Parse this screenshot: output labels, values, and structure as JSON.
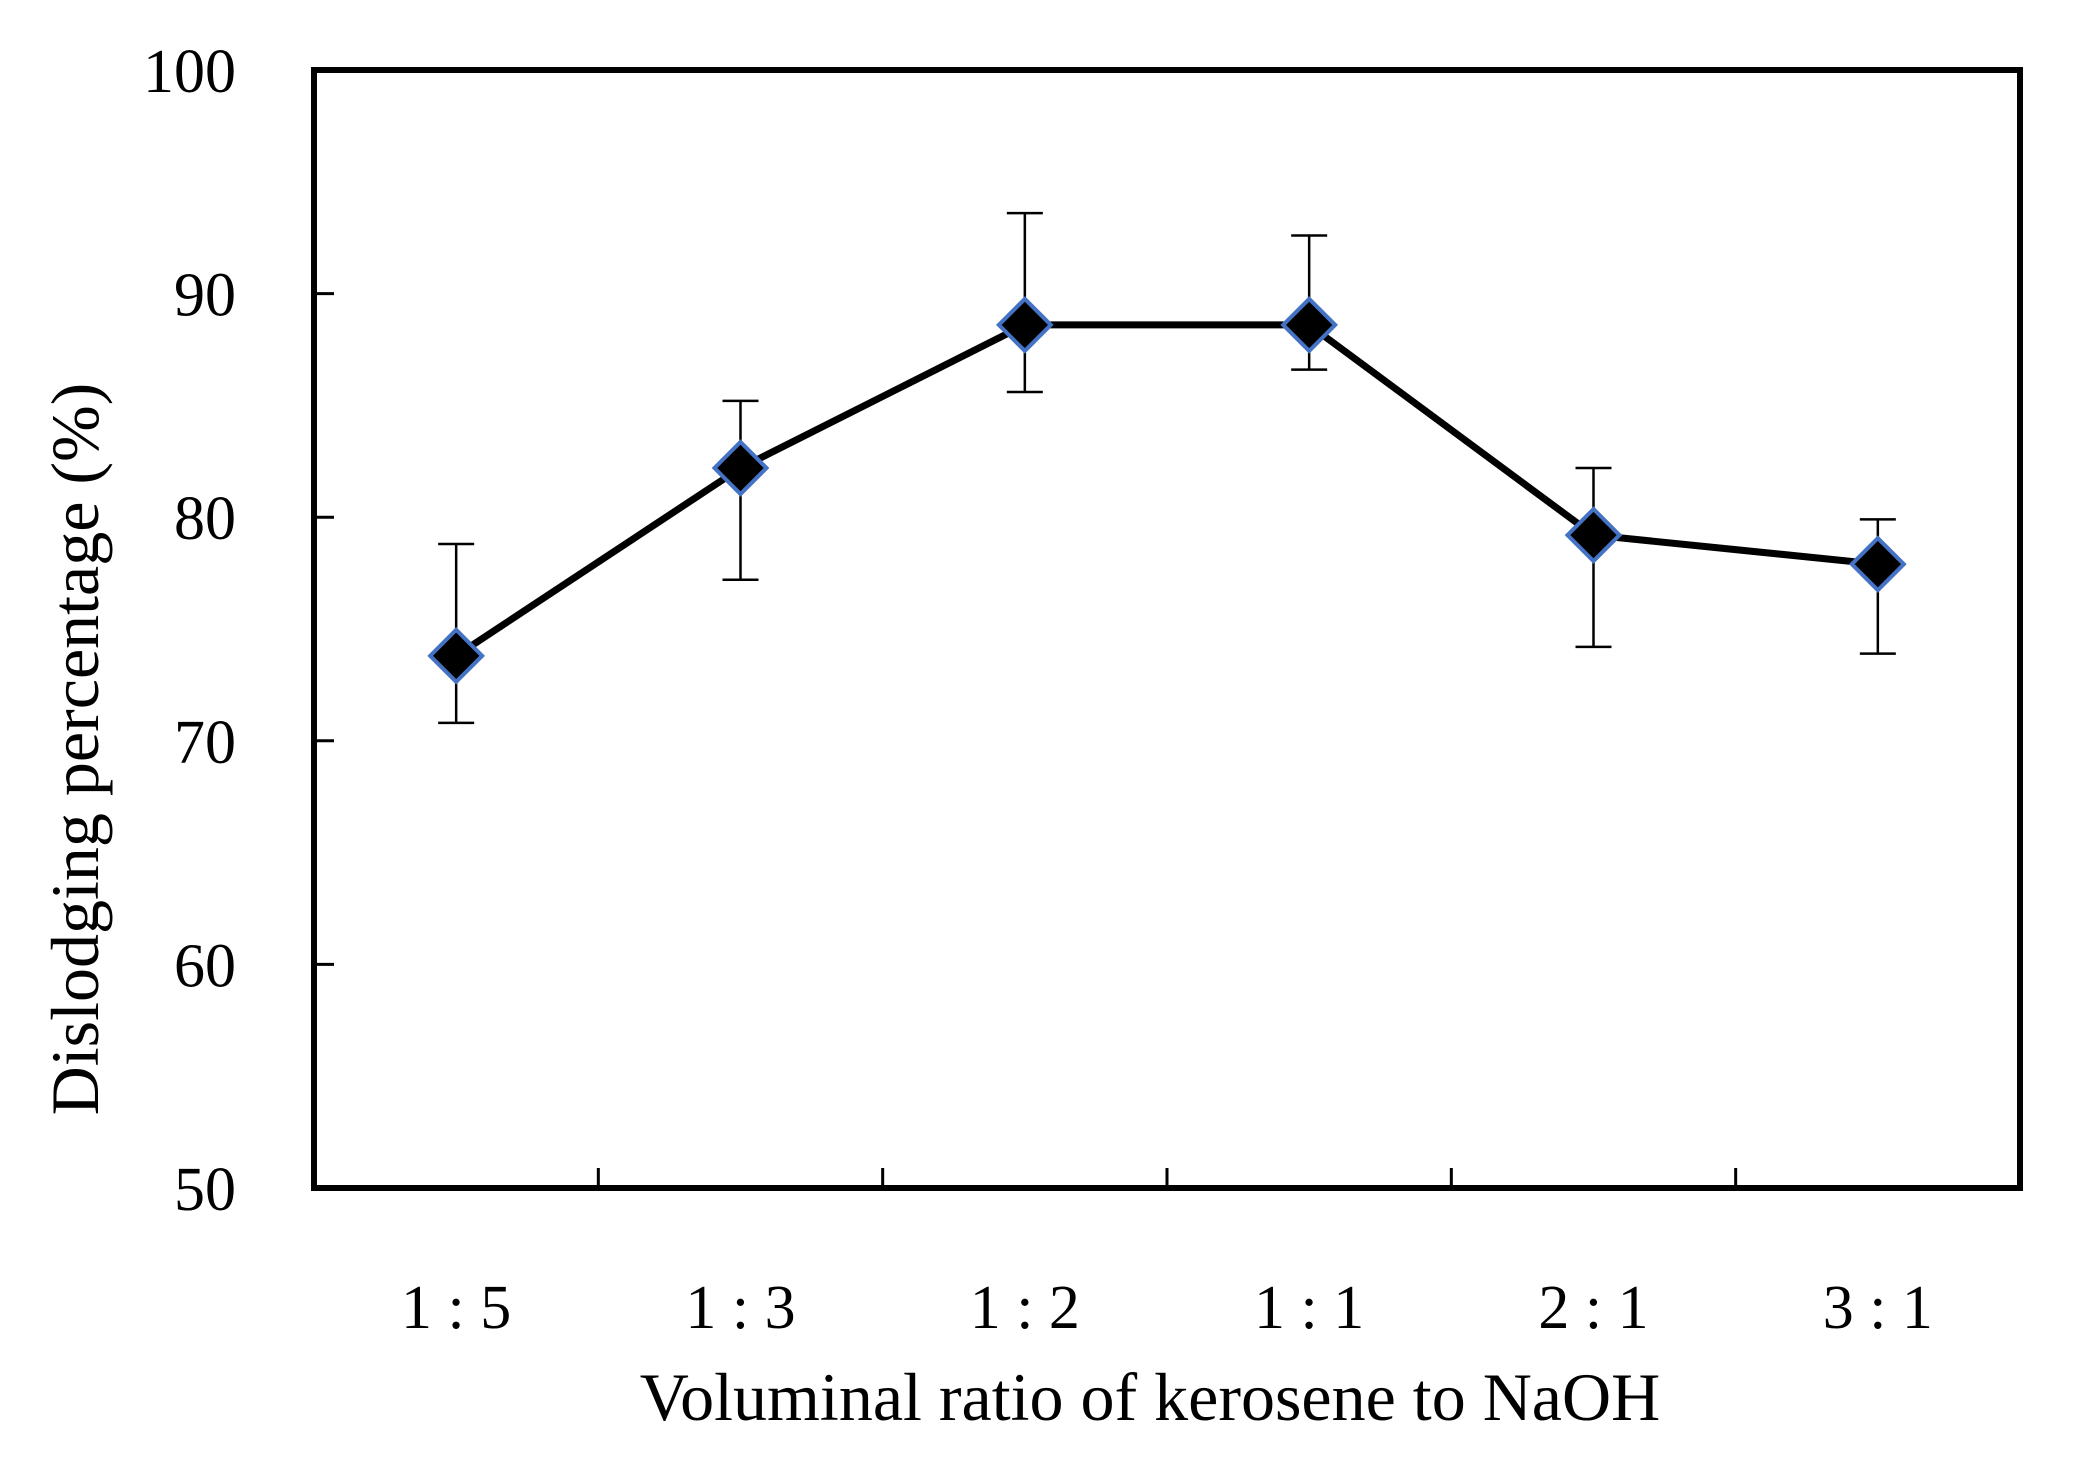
{
  "chart_data": {
    "type": "line",
    "title": "",
    "xlabel": "Voluminal ratio of kerosene to NaOH",
    "ylabel": "Dislodging percentage (%)",
    "categories": [
      "1 : 5",
      "1 : 3",
      "1 : 2",
      "1 : 1",
      "2 : 1",
      "3 : 1"
    ],
    "ylim": [
      50,
      100
    ],
    "yticks": [
      "50",
      "60",
      "70",
      "80",
      "90",
      "100"
    ],
    "grid": false,
    "legend": "none",
    "series": [
      {
        "values": [
          73.8,
          82.2,
          88.6,
          88.6,
          79.2,
          77.9
        ],
        "error_upper": [
          78.8,
          85.2,
          93.6,
          92.6,
          82.2,
          79.9
        ],
        "error_lower": [
          70.8,
          77.2,
          85.6,
          86.6,
          74.2,
          73.9
        ],
        "line_color": "#000000",
        "marker": "diamond",
        "marker_fill": "#000000",
        "marker_edge_color": "#4472C4"
      }
    ]
  }
}
